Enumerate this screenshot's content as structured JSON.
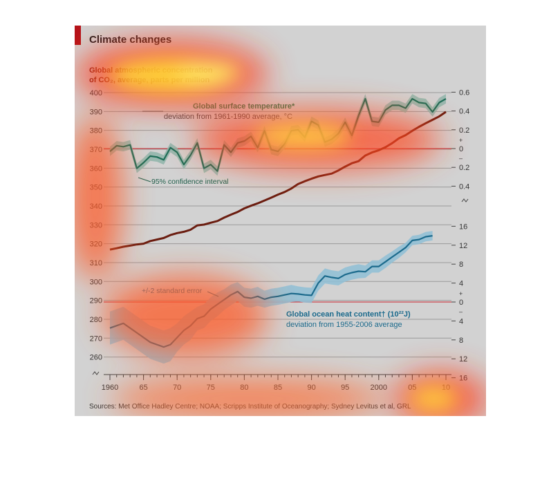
{
  "header": {
    "title": "Climate changes"
  },
  "labels": {
    "co2_line1": "Global atmospheric concentration",
    "co2_line2": "of CO₂, average, parts per million",
    "temp_title": "Global surface temperature*",
    "temp_sub": "deviation from 1961-1990 average, °C",
    "ci": "95% confidence interval",
    "se": "+/-2 standard error",
    "ohc_title": "Global ocean heat content† (10²²J)",
    "ohc_sub": "deviation from 1955-2006 average",
    "source": "Sources: Met Office Hadley Centre; NOAA; Scripps Institute of Oceanography; Sydney Levitus et al, GRL"
  },
  "chart_data": {
    "type": "line",
    "title": "Climate changes",
    "x": {
      "range": [
        1960,
        2010
      ],
      "tick_values": [
        1960,
        1965,
        1970,
        1975,
        1980,
        1985,
        1990,
        1995,
        2000,
        2005,
        2010
      ],
      "tick_labels": [
        "1960",
        "65",
        "70",
        "75",
        "80",
        "85",
        "90",
        "95",
        "2000",
        "05",
        "10"
      ]
    },
    "y_left": {
      "label": "Global atmospheric concentration of CO₂, average, parts per million",
      "range": [
        260,
        400
      ],
      "ticks": [
        400,
        390,
        380,
        370,
        360,
        350,
        340,
        330,
        320,
        310,
        300,
        290,
        280,
        270,
        260
      ]
    },
    "y_right_temp": {
      "label": "deviation from 1961-1990 average, °C",
      "range": [
        -0.4,
        0.6
      ],
      "tick_values": [
        0.6,
        0.4,
        0.2,
        0,
        -0.2,
        -0.4
      ],
      "tick_labels": [
        "0.6",
        "0.4",
        "0.2",
        "0",
        "0.2",
        "0.4"
      ],
      "plus": "+",
      "minus": "–"
    },
    "y_right_ohc": {
      "label": "deviation from 1955-2006 average",
      "range": [
        -16,
        16
      ],
      "tick_values": [
        16,
        12,
        8,
        4,
        0,
        -4,
        -8,
        -12,
        -16
      ],
      "tick_labels": [
        "16",
        "12",
        "8",
        "4",
        "0",
        "4",
        "8",
        "12",
        "16"
      ],
      "plus": "+",
      "minus": "–"
    },
    "grid": true,
    "series": [
      {
        "name": "Global atmospheric concentration of CO₂",
        "axis": "left",
        "color": "#6b1d10",
        "x": [
          1960,
          1961,
          1962,
          1963,
          1964,
          1965,
          1966,
          1967,
          1968,
          1969,
          1970,
          1971,
          1972,
          1973,
          1974,
          1975,
          1976,
          1977,
          1978,
          1979,
          1980,
          1981,
          1982,
          1983,
          1984,
          1985,
          1986,
          1987,
          1988,
          1989,
          1990,
          1991,
          1992,
          1993,
          1994,
          1995,
          1996,
          1997,
          1998,
          1999,
          2000,
          2001,
          2002,
          2003,
          2004,
          2005,
          2006,
          2007,
          2008,
          2009,
          2010
        ],
        "y": [
          316.9,
          317.6,
          318.4,
          319.0,
          319.6,
          320.0,
          321.4,
          322.2,
          323.0,
          324.6,
          325.6,
          326.3,
          327.4,
          329.7,
          330.1,
          331.1,
          332.0,
          333.8,
          335.4,
          336.8,
          338.7,
          340.1,
          341.4,
          342.9,
          344.4,
          346.0,
          347.4,
          349.2,
          351.6,
          353.1,
          354.4,
          355.6,
          356.4,
          357.1,
          358.8,
          360.8,
          362.6,
          363.7,
          366.7,
          368.3,
          369.5,
          371.1,
          373.2,
          375.8,
          377.5,
          379.8,
          381.9,
          383.8,
          385.6,
          387.4,
          389.8
        ]
      },
      {
        "name": "Global surface temperature",
        "axis": "right_temp",
        "color": "#1e6e58",
        "band_color": "#8fb5aa",
        "band_label": "95% confidence interval",
        "band_halfwidth": 0.05,
        "x": [
          1960,
          1961,
          1962,
          1963,
          1964,
          1965,
          1966,
          1967,
          1968,
          1969,
          1970,
          1971,
          1972,
          1973,
          1974,
          1975,
          1976,
          1977,
          1978,
          1979,
          1980,
          1981,
          1982,
          1983,
          1984,
          1985,
          1986,
          1987,
          1988,
          1989,
          1990,
          1991,
          1992,
          1993,
          1994,
          1995,
          1996,
          1997,
          1998,
          1999,
          2000,
          2001,
          2002,
          2003,
          2004,
          2005,
          2006,
          2007,
          2008,
          2009,
          2010
        ],
        "y": [
          -0.03,
          0.03,
          0.02,
          0.04,
          -0.21,
          -0.15,
          -0.08,
          -0.09,
          -0.12,
          0.01,
          -0.04,
          -0.17,
          -0.07,
          0.06,
          -0.21,
          -0.17,
          -0.24,
          0.04,
          -0.04,
          0.06,
          0.08,
          0.13,
          0.01,
          0.19,
          -0.01,
          -0.03,
          0.05,
          0.19,
          0.2,
          0.12,
          0.29,
          0.25,
          0.07,
          0.1,
          0.16,
          0.28,
          0.14,
          0.35,
          0.53,
          0.29,
          0.28,
          0.41,
          0.46,
          0.46,
          0.43,
          0.53,
          0.49,
          0.48,
          0.39,
          0.49,
          0.53
        ]
      },
      {
        "name": "Global ocean heat content",
        "axis": "right_ohc",
        "color": "#1b6a8c",
        "band_color": "#8fc0d6",
        "band_label": "+/-2 standard error",
        "x": [
          1960,
          1962,
          1964,
          1966,
          1968,
          1969,
          1970,
          1971,
          1972,
          1973,
          1974,
          1975,
          1976,
          1977,
          1978,
          1979,
          1980,
          1981,
          1982,
          1983,
          1984,
          1985,
          1986,
          1987,
          1988,
          1989,
          1990,
          1991,
          1992,
          1993,
          1994,
          1995,
          1996,
          1997,
          1998,
          1999,
          2000,
          2001,
          2002,
          2003,
          2004,
          2005,
          2006,
          2007,
          2008
        ],
        "y": [
          -5.5,
          -4.5,
          -6.5,
          -8.5,
          -9.5,
          -9.0,
          -7.5,
          -6.0,
          -5.0,
          -3.5,
          -3.0,
          -1.5,
          -0.5,
          0.5,
          1.5,
          2.2,
          1.0,
          0.8,
          1.2,
          0.6,
          1.0,
          1.2,
          1.5,
          1.8,
          1.7,
          1.5,
          1.4,
          4.0,
          5.5,
          5.2,
          5.0,
          5.8,
          6.2,
          6.5,
          6.4,
          7.5,
          7.5,
          8.5,
          9.5,
          10.5,
          11.5,
          13.0,
          13.2,
          13.8,
          14.0
        ],
        "band_halfwidth": [
          3.5,
          3.5,
          3.5,
          3.5,
          3.5,
          3.5,
          3.0,
          3.0,
          3.0,
          2.5,
          2.5,
          2.5,
          2.5,
          2.2,
          2.2,
          2.0,
          2.0,
          2.0,
          2.0,
          1.8,
          1.8,
          1.8,
          1.8,
          1.8,
          1.6,
          1.6,
          1.6,
          1.6,
          1.6,
          1.5,
          1.5,
          1.5,
          1.5,
          1.5,
          1.3,
          1.3,
          1.3,
          1.3,
          1.2,
          1.2,
          1.0,
          1.0,
          1.0,
          1.0,
          1.0
        ]
      }
    ],
    "reference_lines": [
      {
        "axis": "right_temp",
        "value": 0,
        "color": "#c8202a"
      },
      {
        "axis": "right_ohc",
        "value": 0,
        "color": "#c8202a"
      }
    ]
  }
}
